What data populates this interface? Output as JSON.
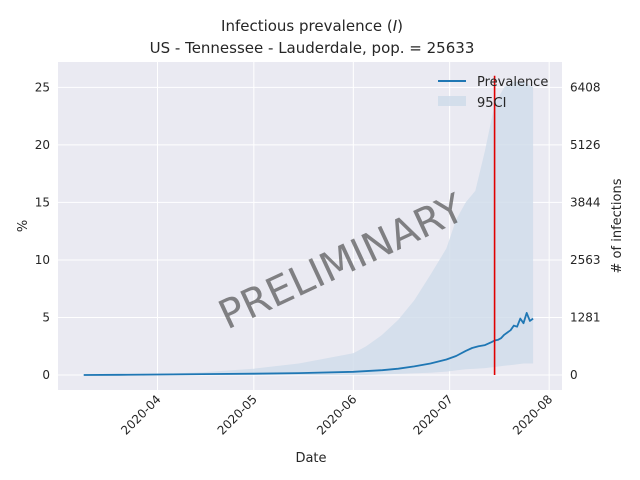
{
  "chart_data": {
    "type": "line",
    "title_line1": "Infectious prevalence (",
    "title_italic": "I",
    "title_line1_end": ")",
    "title_line2": "US - Tennessee - Lauderdale, pop. = 25633",
    "xlabel": "Date",
    "ylabel": "%",
    "ylabel_right": "# of infections",
    "watermark": "PRELIMINARY",
    "x_ticks": [
      "2020-04",
      "2020-05",
      "2020-06",
      "2020-07",
      "2020-08"
    ],
    "y_ticks": [
      "0",
      "5",
      "10",
      "15",
      "20",
      "25"
    ],
    "y_ticks_right": [
      "0",
      "1281",
      "2563",
      "3844",
      "5126",
      "6408"
    ],
    "legend": {
      "prevalence": "Prevalence",
      "ci": "95CI",
      "placement": "top-right"
    },
    "ylim": [
      -1.3,
      27.2
    ],
    "x_start": "2020-03-09",
    "x_end": "2020-07-27",
    "marker_date": "2020-07-15",
    "grid": true,
    "series": [
      {
        "name": "Prevalence",
        "x": [
          "2020-03-09",
          "2020-03-20",
          "2020-04-01",
          "2020-04-15",
          "2020-05-01",
          "2020-05-15",
          "2020-06-01",
          "2020-06-10",
          "2020-06-15",
          "2020-06-20",
          "2020-06-25",
          "2020-06-30",
          "2020-07-03",
          "2020-07-06",
          "2020-07-08",
          "2020-07-10",
          "2020-07-12",
          "2020-07-14",
          "2020-07-15",
          "2020-07-16",
          "2020-07-17",
          "2020-07-18",
          "2020-07-19",
          "2020-07-20",
          "2020-07-21",
          "2020-07-22",
          "2020-07-23",
          "2020-07-24",
          "2020-07-25",
          "2020-07-26",
          "2020-07-27"
        ],
        "values": [
          0.0,
          0.02,
          0.05,
          0.08,
          0.12,
          0.17,
          0.28,
          0.42,
          0.55,
          0.75,
          1.0,
          1.35,
          1.65,
          2.1,
          2.35,
          2.5,
          2.6,
          2.85,
          3.0,
          3.05,
          3.2,
          3.5,
          3.7,
          3.9,
          4.3,
          4.2,
          4.9,
          4.5,
          5.4,
          4.7,
          4.9
        ]
      },
      {
        "name": "95CI",
        "x": [
          "2020-03-09",
          "2020-04-01",
          "2020-04-15",
          "2020-05-01",
          "2020-05-15",
          "2020-06-01",
          "2020-06-05",
          "2020-06-10",
          "2020-06-15",
          "2020-06-20",
          "2020-06-25",
          "2020-06-30",
          "2020-07-03",
          "2020-07-06",
          "2020-07-09",
          "2020-07-12",
          "2020-07-15",
          "2020-07-18",
          "2020-07-21",
          "2020-07-24",
          "2020-07-27"
        ],
        "upper": [
          0.0,
          0.08,
          0.25,
          0.55,
          1.0,
          1.9,
          2.5,
          3.5,
          4.8,
          6.5,
          8.7,
          11.0,
          13.5,
          15.0,
          16.0,
          19.5,
          23.5,
          25.0,
          25.5,
          25.5,
          25.0
        ],
        "lower": [
          0.0,
          0.0,
          0.0,
          0.0,
          0.0,
          0.0,
          0.0,
          0.05,
          0.1,
          0.15,
          0.2,
          0.3,
          0.4,
          0.5,
          0.55,
          0.6,
          0.7,
          0.8,
          0.9,
          1.0,
          1.0
        ]
      }
    ]
  }
}
